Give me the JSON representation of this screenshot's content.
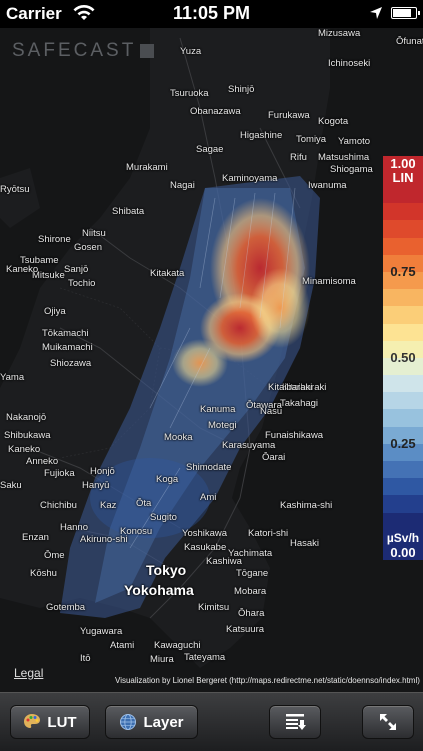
{
  "status_bar": {
    "carrier": "Carrier",
    "time": "11:05 PM",
    "battery_level": 0.85
  },
  "map": {
    "logo": "SAFECAST",
    "legal": "Legal",
    "credit": "Visualization by Lionel Bergeret (http://maps.redirectme.net/static/doennso/index.html)",
    "cities": [
      {
        "name": "Yuza"
      },
      {
        "name": "Mizusawa"
      },
      {
        "name": "Ōfunat"
      },
      {
        "name": "Ichinoseki"
      },
      {
        "name": "Tsuruoka"
      },
      {
        "name": "Shinjō"
      },
      {
        "name": "Obanazawa"
      },
      {
        "name": "Furukawa"
      },
      {
        "name": "Kogota"
      },
      {
        "name": "Higashine"
      },
      {
        "name": "Tomiya"
      },
      {
        "name": "Yamoto"
      },
      {
        "name": "Sagae"
      },
      {
        "name": "Rifu"
      },
      {
        "name": "Matsushima"
      },
      {
        "name": "Shiogama"
      },
      {
        "name": "Murakami"
      },
      {
        "name": "Nagai"
      },
      {
        "name": "Kaminoyama"
      },
      {
        "name": "Iwanuma"
      },
      {
        "name": "Ryōtsu"
      },
      {
        "name": "Shibata"
      },
      {
        "name": "Shirone"
      },
      {
        "name": "Niitsu"
      },
      {
        "name": "Gosen"
      },
      {
        "name": "Tsubame"
      },
      {
        "name": "Mitsuke"
      },
      {
        "name": "Kaneko"
      },
      {
        "name": "Sanjō"
      },
      {
        "name": "Tochio"
      },
      {
        "name": "Ojiya"
      },
      {
        "name": "Tōkamachi"
      },
      {
        "name": "Muikamachi"
      },
      {
        "name": "Shiozawa"
      },
      {
        "name": "Yama"
      },
      {
        "name": "Nakanojō"
      },
      {
        "name": "Shibukawa"
      },
      {
        "name": "Kaneko"
      },
      {
        "name": "Anneko"
      },
      {
        "name": "Saku"
      },
      {
        "name": "Fujioka"
      },
      {
        "name": "Chichibu"
      },
      {
        "name": "Enzan"
      },
      {
        "name": "Ōme"
      },
      {
        "name": "Kōshu"
      },
      {
        "name": "Gotemba"
      },
      {
        "name": "Kitaibaraki"
      },
      {
        "name": "Takahagi"
      },
      {
        "name": "Funaishikawa"
      },
      {
        "name": "Ōarai"
      },
      {
        "name": "Kashima-shi"
      },
      {
        "name": "Hasaki"
      },
      {
        "name": "Katori-shi"
      },
      {
        "name": "Yachimata"
      },
      {
        "name": "Tōgane"
      },
      {
        "name": "Mobara"
      },
      {
        "name": "Ōhara"
      },
      {
        "name": "Katsuura"
      },
      {
        "name": "Kimitsu"
      },
      {
        "name": "Yugawara"
      },
      {
        "name": "Itō"
      },
      {
        "name": "Miura"
      },
      {
        "name": "Kawaguchi"
      },
      {
        "name": "Tateyama"
      },
      {
        "name": "Atami"
      },
      {
        "name": "Kitaibaraki"
      },
      {
        "name": "Motegi"
      },
      {
        "name": "Mooka"
      },
      {
        "name": "Karasuyama"
      },
      {
        "name": "Honjō"
      },
      {
        "name": "Hanyū"
      },
      {
        "name": "Kaz"
      },
      {
        "name": "Shimodate"
      },
      {
        "name": "Ami"
      },
      {
        "name": "Sugito"
      },
      {
        "name": "Kasukabe"
      },
      {
        "name": "Ōta"
      },
      {
        "name": "Koga"
      },
      {
        "name": "Yoshikawa"
      },
      {
        "name": "Kashiwa"
      },
      {
        "name": "Hanno"
      },
      {
        "name": "Akiruno-shi"
      },
      {
        "name": "Konosu"
      },
      {
        "name": "Kanuma"
      },
      {
        "name": "Ōtawara"
      },
      {
        "name": "Nasu"
      },
      {
        "name": "Kitakata"
      },
      {
        "name": "Minamisoma"
      }
    ],
    "big_cities": [
      {
        "name": "Tokyo"
      },
      {
        "name": "Yokohama"
      }
    ]
  },
  "scale": {
    "top_value": "1.00",
    "mode": "LIN",
    "ticks": [
      "0.75",
      "0.50",
      "0.25"
    ],
    "unit": "µSv/h",
    "bottom_value": "0.00",
    "colors": [
      "#c0272d",
      "#d2352a",
      "#df4a2c",
      "#e9612f",
      "#f07e3b",
      "#f59a4d",
      "#f8b561",
      "#fbce78",
      "#fde393",
      "#f5efb0",
      "#e5efd1",
      "#cfe4ea",
      "#b6d5e6",
      "#98c2de",
      "#7aaad3",
      "#5b8dc5",
      "#4472b5",
      "#2f58a3",
      "#233f8d",
      "#1c2b74"
    ]
  },
  "toolbar": {
    "lut_label": "LUT",
    "layer_label": "Layer"
  }
}
